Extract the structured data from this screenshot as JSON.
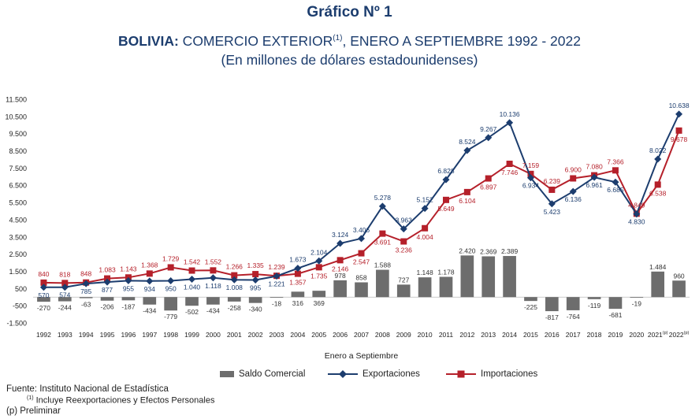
{
  "header": {
    "title": "Gráfico Nº 1",
    "subtitle_bold": "BOLIVIA:",
    "subtitle_rest": " COMERCIO EXTERIOR",
    "subtitle_sup": "(1)",
    "subtitle_tail": ", ENERO A SEPTIEMBRE 1992 - 2022",
    "units": "(En millones de dólares estadounidenses)"
  },
  "chart_data": {
    "type": "bar",
    "x_label": "Enero  a  Septiembre",
    "categories": [
      "1992",
      "1993",
      "1994",
      "1995",
      "1996",
      "1997",
      "1998",
      "1999",
      "2000",
      "2001",
      "2002",
      "2003",
      "2004",
      "2005",
      "2006",
      "2007",
      "2008",
      "2009",
      "2010",
      "2011",
      "2012",
      "2013",
      "2014",
      "2015",
      "2016",
      "2017",
      "2018",
      "2019",
      "2020",
      "2021(p)",
      "2022(p)"
    ],
    "category_labels": [
      "1992",
      "1993",
      "1994",
      "1995",
      "1996",
      "1997",
      "1998",
      "1999",
      "2000",
      "2001",
      "2002",
      "2003",
      "2004",
      "2005",
      "2006",
      "2007",
      "2008",
      "2009",
      "2010",
      "2011",
      "2012",
      "2013",
      "2014",
      "2015",
      "2016",
      "2017",
      "2018",
      "2019",
      "2020",
      "2021",
      "2022"
    ],
    "category_sup": [
      "",
      "",
      "",
      "",
      "",
      "",
      "",
      "",
      "",
      "",
      "",
      "",
      "",
      "",
      "",
      "",
      "",
      "",
      "",
      "",
      "",
      "",
      "",
      "",
      "",
      "",
      "",
      "",
      "",
      "(p)",
      "(p)"
    ],
    "ylim": [
      -1500,
      11500
    ],
    "yticks": [
      -1500,
      -500,
      500,
      1500,
      2500,
      3500,
      4500,
      5500,
      6500,
      7500,
      8500,
      9500,
      10500,
      11500
    ],
    "ytick_labels": [
      "-1.500",
      "-500",
      "500",
      "1.500",
      "2.500",
      "3.500",
      "4.500",
      "5.500",
      "6.500",
      "7.500",
      "8.500",
      "9.500",
      "10.500",
      "11.500"
    ],
    "series": [
      {
        "name": "Saldo Comercial",
        "kind": "bar",
        "color": "#6d6d6d",
        "values": [
          -270,
          -244,
          -63,
          -206,
          -187,
          -434,
          -779,
          -502,
          -434,
          -258,
          -340,
          -18,
          316,
          369,
          978,
          858,
          1588,
          727,
          1148,
          1178,
          2420,
          2369,
          2389,
          -225,
          -817,
          -764,
          -119,
          -681,
          -19,
          1484,
          960
        ],
        "labels": [
          "-270",
          "-244",
          "-63",
          "-206",
          "-187",
          "-434",
          "-779",
          "-502",
          "-434",
          "-258",
          "-340",
          "-18",
          "316",
          "369",
          "978",
          "858",
          "1.588",
          "727",
          "1.148",
          "1.178",
          "2.420",
          "2.369",
          "2.389",
          "-225",
          "-817",
          "-764",
          "-119",
          "-681",
          "-19",
          "1.484",
          "960"
        ]
      },
      {
        "name": "Exportaciones",
        "kind": "line",
        "color": "#1c3d6e",
        "marker": "diamond",
        "values": [
          570,
          574,
          785,
          877,
          955,
          934,
          950,
          1040,
          1118,
          1008,
          995,
          1221,
          1673,
          2104,
          3124,
          3406,
          5278,
          3963,
          5152,
          6828,
          8524,
          9267,
          10136,
          6934,
          5423,
          6136,
          6961,
          6685,
          4830,
          8022,
          10638
        ],
        "labels": [
          "570",
          "574",
          "785",
          "877",
          "955",
          "934",
          "950",
          "1.040",
          "1.118",
          "1.008",
          "995",
          "1.221",
          "1.673",
          "2.104",
          "3.124",
          "3.406",
          "5.278",
          "3.963",
          "5.152",
          "6.828",
          "8.524",
          "9.267",
          "10.136",
          "6.934",
          "5.423",
          "6.136",
          "6.961",
          "6.685",
          "4.830",
          "8.022",
          "10.638"
        ]
      },
      {
        "name": "Importaciones",
        "kind": "line",
        "color": "#b5202a",
        "marker": "square",
        "values": [
          840,
          818,
          848,
          1083,
          1143,
          1368,
          1729,
          1542,
          1552,
          1266,
          1335,
          1239,
          1357,
          1735,
          2146,
          2547,
          3691,
          3236,
          4004,
          5649,
          6104,
          6897,
          7746,
          7159,
          6239,
          6900,
          7080,
          7366,
          4849,
          6538,
          9678
        ],
        "labels": [
          "840",
          "818",
          "848",
          "1.083",
          "1.143",
          "1.368",
          "1.729",
          "1.542",
          "1.552",
          "1.266",
          "1.335",
          "1.239",
          "1.357",
          "1.735",
          "2.146",
          "2.547",
          "3.691",
          "3.236",
          "4.004",
          "5.649",
          "6.104",
          "6.897",
          "7.746",
          "7.159",
          "6.239",
          "6.900",
          "7.080",
          "7.366",
          "4.849",
          "6.538",
          "9.678"
        ]
      }
    ]
  },
  "footer": {
    "source": "Fuente: Instituto Nacional de Estadística",
    "note1_sup": "(1)",
    "note1": " Incluye Reexportaciones y Efectos Personales",
    "note2": "(p) Preliminar"
  }
}
